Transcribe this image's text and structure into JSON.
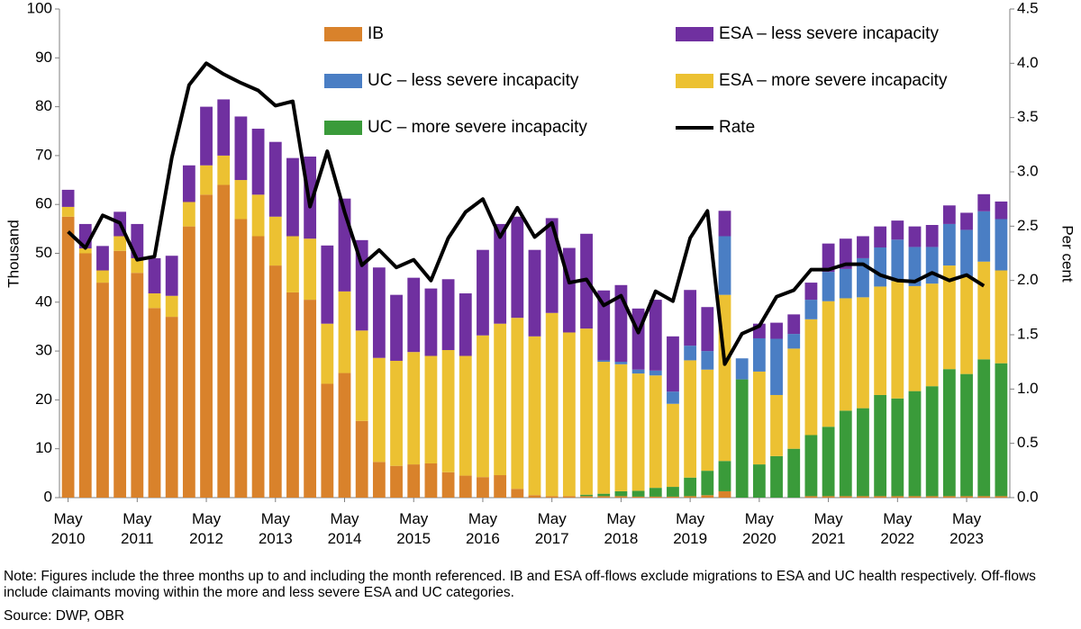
{
  "chart_data": {
    "type": "bar",
    "stacked": true,
    "ylabel": "Thousand",
    "y2label": "Per cent",
    "note": "Note: Figures include the three months up to and including the month referenced. IB and ESA off-flows exclude migrations to ESA and UC health respectively. Off-flows include claimants moving within the more and less severe ESA and UC categories.",
    "source": "Source: DWP, OBR",
    "categories": [
      "May 2010",
      null,
      null,
      null,
      "May 2011",
      null,
      null,
      null,
      "May 2012",
      null,
      null,
      null,
      "May 2013",
      null,
      null,
      null,
      "May 2014",
      null,
      null,
      null,
      "May 2015",
      null,
      null,
      null,
      "May 2016",
      null,
      null,
      null,
      "May 2017",
      null,
      null,
      null,
      "May 2018",
      null,
      null,
      null,
      "May 2019",
      null,
      null,
      null,
      "May 2020",
      null,
      null,
      null,
      "May 2021",
      null,
      null,
      null,
      "May 2022",
      null,
      null,
      null,
      "May 2023",
      null,
      null
    ],
    "ylim": [
      0,
      100
    ],
    "yticks": [
      0,
      10,
      20,
      30,
      40,
      50,
      60,
      70,
      80,
      90,
      100
    ],
    "y2lim": [
      0,
      4.5
    ],
    "y2ticks": [
      {
        "value": 0,
        "label": "0.0"
      },
      0.5,
      {
        "value": 1,
        "label": "1.0"
      },
      1.5,
      {
        "value": 2,
        "label": "2.0"
      },
      2.5,
      {
        "value": 3,
        "label": "3.0"
      },
      3.5,
      {
        "value": 4,
        "label": "4.0"
      },
      4.5
    ],
    "grid": false,
    "series": [
      {
        "name": "IB",
        "color": "#d9822b",
        "values": [
          57.5,
          50,
          44,
          50.5,
          46,
          38.8,
          37,
          55.5,
          62,
          64,
          57,
          53.5,
          47.5,
          42,
          40.5,
          23.3,
          25.5,
          15.7,
          7.3,
          6.5,
          6.8,
          7,
          5.2,
          4.5,
          4.2,
          4.6,
          1.8,
          0.5,
          0.3,
          0.3,
          0.3,
          0.3,
          0.3,
          0.2,
          0.2,
          0.2,
          0.3,
          0.5,
          1.3,
          0,
          0,
          0,
          0,
          0.3,
          0.3,
          0.3,
          0.3,
          0.3,
          0.3,
          0.3,
          0.3,
          0.3,
          0.3,
          0.3,
          0.3
        ]
      },
      {
        "name": "UC – more severe incapacity",
        "color": "#3a9b3a",
        "values": [
          0,
          0,
          0,
          0,
          0,
          0,
          0,
          0,
          0,
          0,
          0,
          0,
          0,
          0,
          0,
          0,
          0,
          0,
          0,
          0,
          0,
          0,
          0,
          0,
          0,
          0,
          0,
          0,
          0,
          0,
          0.3,
          0.5,
          1,
          1.2,
          1.8,
          2,
          3.8,
          5,
          6.2,
          24.2,
          6.8,
          8.5,
          10,
          12.5,
          14.2,
          17.5,
          18,
          20.7,
          20,
          21.5,
          22.5,
          26,
          25,
          28,
          27.2
        ]
      },
      {
        "name": "ESA – more severe incapacity",
        "color": "#ecc132",
        "values": [
          2,
          1,
          2.5,
          3,
          3,
          3,
          4.3,
          5,
          6,
          6,
          8,
          8.5,
          10,
          11.5,
          12.5,
          12.3,
          16.7,
          18.5,
          21.3,
          21.5,
          23,
          22,
          25,
          24.5,
          29,
          31,
          35,
          32.5,
          37.5,
          33.5,
          34,
          27,
          26,
          24,
          23,
          17,
          24,
          20.7,
          34,
          0,
          19,
          12.5,
          20.5,
          23.7,
          25.7,
          23,
          22.7,
          22.2,
          24,
          21.5,
          21,
          21.2,
          20,
          20,
          19
        ]
      },
      {
        "name": "UC – less severe incapacity",
        "color": "#4a7ec4",
        "values": [
          0,
          0,
          0,
          0,
          0,
          0,
          0,
          0,
          0,
          0,
          0,
          0,
          0,
          0,
          0,
          0,
          0,
          0,
          0,
          0,
          0,
          0,
          0,
          0,
          0,
          0,
          0,
          0,
          0,
          0,
          0,
          0.3,
          0.5,
          0.8,
          1,
          2.5,
          3,
          3.8,
          12,
          4.3,
          6.8,
          11.5,
          3,
          4,
          6,
          6,
          8,
          8,
          8.5,
          8,
          7.5,
          8.5,
          9.5,
          10.3,
          10.5
        ]
      },
      {
        "name": "ESA – less severe incapacity",
        "color": "#7030a0",
        "values": [
          3.5,
          5,
          5,
          5,
          7,
          7.2,
          8.2,
          7.5,
          12,
          11.5,
          13,
          13.5,
          15.3,
          16,
          16.8,
          16,
          19,
          18.5,
          18.5,
          13.5,
          15.2,
          13.8,
          14.5,
          12.8,
          17.5,
          20.4,
          20.7,
          17.7,
          19.4,
          17.3,
          19.4,
          14.3,
          15.7,
          12.5,
          14.5,
          11.3,
          11.4,
          9,
          5.2,
          0,
          3,
          3.3,
          4,
          3.5,
          5.8,
          6.2,
          4.5,
          4.3,
          3.9,
          4.2,
          4.5,
          3.8,
          3.5,
          3.5,
          3.6
        ]
      },
      {
        "name": "Rate",
        "color": "#000000",
        "type": "line",
        "axis": "y2",
        "values": [
          2.45,
          2.3,
          2.6,
          2.53,
          2.19,
          2.22,
          3.13,
          3.8,
          4.0,
          3.9,
          3.82,
          3.75,
          3.61,
          3.65,
          2.68,
          3.19,
          2.63,
          2.14,
          2.28,
          2.12,
          2.19,
          2.0,
          2.39,
          2.63,
          2.75,
          2.4,
          2.67,
          2.4,
          2.53,
          1.98,
          2.01,
          1.77,
          1.86,
          1.52,
          1.9,
          1.81,
          2.39,
          2.64,
          1.23,
          1.51,
          1.58,
          1.85,
          1.91,
          2.1,
          2.1,
          2.15,
          2.15,
          2.05,
          2.0,
          1.99,
          2.07,
          2.0,
          2.05,
          1.95,
          null
        ]
      }
    ]
  }
}
